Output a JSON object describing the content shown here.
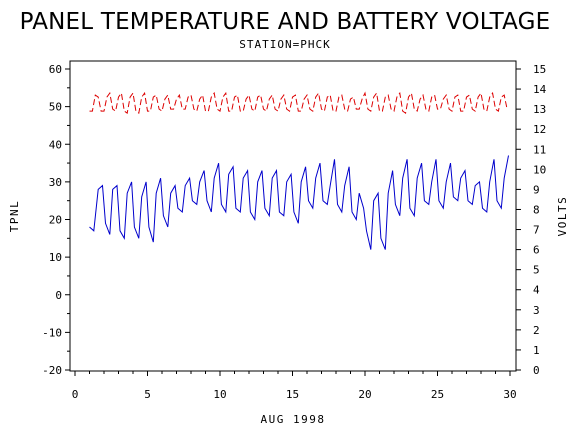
{
  "chart_data": {
    "type": "line",
    "title": "PANEL TEMPERATURE AND BATTERY VOLTAGE",
    "subtitle": "STATION=PHCK",
    "xlabel": "AUG 1998",
    "ylabel_left": "TPNL",
    "ylabel_right": "VOLTS",
    "xlim": [
      0,
      30
    ],
    "ylim_left": [
      -20,
      60
    ],
    "ylim_right": [
      0,
      15
    ],
    "x_ticks": [
      0,
      5,
      10,
      15,
      20,
      25,
      30
    ],
    "y_ticks_left": [
      -20,
      -10,
      0,
      10,
      20,
      30,
      40,
      50,
      60
    ],
    "y_ticks_right": [
      0,
      1,
      2,
      3,
      4,
      5,
      6,
      7,
      8,
      9,
      10,
      11,
      12,
      13,
      14,
      15
    ],
    "grid": false,
    "series": [
      {
        "axis": "left",
        "color": "#0000cc",
        "style": "solid",
        "x": [
          1.0,
          1.3,
          1.6,
          1.9,
          2.1,
          2.4,
          2.6,
          2.9,
          3.1,
          3.4,
          3.6,
          3.9,
          4.1,
          4.4,
          4.6,
          4.9,
          5.1,
          5.4,
          5.6,
          5.9,
          6.1,
          6.4,
          6.6,
          6.9,
          7.1,
          7.4,
          7.6,
          7.9,
          8.1,
          8.4,
          8.6,
          8.9,
          9.1,
          9.4,
          9.6,
          9.9,
          10.1,
          10.4,
          10.6,
          10.9,
          11.1,
          11.4,
          11.6,
          11.9,
          12.1,
          12.4,
          12.6,
          12.9,
          13.1,
          13.4,
          13.6,
          13.9,
          14.1,
          14.4,
          14.6,
          14.9,
          15.1,
          15.4,
          15.6,
          15.9,
          16.1,
          16.4,
          16.6,
          16.9,
          17.1,
          17.4,
          17.6,
          17.9,
          18.1,
          18.4,
          18.6,
          18.9,
          19.1,
          19.4,
          19.6,
          19.9,
          20.1,
          20.4,
          20.6,
          20.9,
          21.1,
          21.4,
          21.6,
          21.9,
          22.1,
          22.4,
          22.6,
          22.9,
          23.1,
          23.4,
          23.6,
          23.9,
          24.1,
          24.4,
          24.6,
          24.9,
          25.1,
          25.4,
          25.6,
          25.9,
          26.1,
          26.4,
          26.6,
          26.9,
          27.1,
          27.4,
          27.6,
          27.9,
          28.1,
          28.4,
          28.6,
          28.9,
          29.1,
          29.4,
          29.6,
          29.9
        ],
        "y": [
          18,
          17,
          28,
          29,
          19,
          16,
          28,
          29,
          17,
          15,
          27,
          30,
          18,
          15,
          26,
          30,
          18,
          14,
          27,
          31,
          21,
          18,
          27,
          29,
          23,
          22,
          29,
          31,
          25,
          24,
          30,
          33,
          25,
          22,
          31,
          35,
          24,
          22,
          32,
          34,
          23,
          22,
          31,
          33,
          22,
          20,
          30,
          33,
          23,
          21,
          31,
          33,
          22,
          21,
          30,
          32,
          22,
          19,
          30,
          34,
          25,
          23,
          31,
          35,
          25,
          24,
          29,
          36,
          24,
          22,
          29,
          34,
          22,
          20,
          27,
          23,
          17,
          12,
          25,
          27,
          15,
          12,
          27,
          33,
          24,
          21,
          31,
          36,
          23,
          21,
          31,
          35,
          25,
          24,
          30,
          36,
          25,
          23,
          30,
          35,
          26,
          25,
          31,
          33,
          25,
          24,
          29,
          30,
          23,
          22,
          30,
          36,
          25,
          23,
          31,
          37
        ]
      },
      {
        "axis": "right",
        "color": "#dd0000",
        "style": "dashed",
        "x": [
          1.0,
          1.2,
          1.4,
          1.6,
          1.8,
          2.0,
          2.2,
          2.4,
          2.6,
          2.8,
          3.0,
          3.2,
          3.4,
          3.6,
          3.8,
          4.0,
          4.2,
          4.4,
          4.6,
          4.8,
          5.0,
          5.2,
          5.4,
          5.6,
          5.8,
          6.0,
          6.2,
          6.4,
          6.6,
          6.8,
          7.0,
          7.2,
          7.4,
          7.6,
          7.8,
          8.0,
          8.2,
          8.4,
          8.6,
          8.8,
          9.0,
          9.2,
          9.4,
          9.6,
          9.8,
          10.0,
          10.2,
          10.4,
          10.6,
          10.8,
          11.0,
          11.2,
          11.4,
          11.6,
          11.8,
          12.0,
          12.2,
          12.4,
          12.6,
          12.8,
          13.0,
          13.2,
          13.4,
          13.6,
          13.8,
          14.0,
          14.2,
          14.4,
          14.6,
          14.8,
          15.0,
          15.2,
          15.4,
          15.6,
          15.8,
          16.0,
          16.2,
          16.4,
          16.6,
          16.8,
          17.0,
          17.2,
          17.4,
          17.6,
          17.8,
          18.0,
          18.2,
          18.4,
          18.6,
          18.8,
          19.0,
          19.2,
          19.4,
          19.6,
          19.8,
          20.0,
          20.2,
          20.4,
          20.6,
          20.8,
          21.0,
          21.2,
          21.4,
          21.6,
          21.8,
          22.0,
          22.2,
          22.4,
          22.6,
          22.8,
          23.0,
          23.2,
          23.4,
          23.6,
          23.8,
          24.0,
          24.2,
          24.4,
          24.6,
          24.8,
          25.0,
          25.2,
          25.4,
          25.6,
          25.8,
          26.0,
          26.2,
          26.4,
          26.6,
          26.8,
          27.0,
          27.2,
          27.4,
          27.6,
          27.8,
          28.0,
          28.2,
          28.4,
          28.6,
          28.8,
          29.0,
          29.2,
          29.4,
          29.6,
          29.8
        ],
        "y": [
          12.9,
          12.9,
          13.7,
          13.6,
          12.9,
          12.9,
          13.6,
          13.8,
          13.0,
          12.9,
          13.6,
          13.8,
          12.9,
          12.8,
          13.6,
          13.8,
          12.9,
          12.8,
          13.6,
          13.8,
          12.9,
          12.9,
          13.6,
          13.7,
          13.0,
          12.9,
          13.5,
          13.7,
          13.0,
          13.0,
          13.5,
          13.7,
          13.0,
          13.0,
          13.6,
          13.7,
          13.0,
          12.9,
          13.5,
          13.7,
          12.9,
          12.9,
          13.6,
          13.8,
          13.0,
          12.9,
          13.6,
          13.8,
          12.9,
          12.9,
          13.6,
          13.7,
          12.9,
          12.9,
          13.5,
          13.7,
          13.0,
          12.9,
          13.6,
          13.7,
          13.0,
          12.9,
          13.5,
          13.7,
          13.0,
          12.9,
          13.5,
          13.7,
          13.0,
          12.9,
          13.6,
          13.7,
          12.9,
          12.9,
          13.5,
          13.7,
          13.0,
          12.9,
          13.6,
          13.8,
          13.0,
          12.9,
          13.6,
          13.7,
          12.9,
          12.9,
          13.6,
          13.7,
          13.0,
          12.9,
          13.5,
          13.6,
          13.0,
          13.0,
          13.5,
          13.8,
          13.0,
          12.9,
          13.6,
          13.8,
          12.9,
          12.9,
          13.6,
          13.7,
          13.0,
          12.9,
          13.6,
          13.8,
          12.9,
          12.8,
          13.6,
          13.8,
          13.0,
          12.9,
          13.5,
          13.7,
          13.0,
          12.9,
          13.6,
          13.7,
          13.0,
          13.0,
          13.5,
          13.7,
          13.0,
          12.9,
          13.6,
          13.7,
          12.9,
          12.9,
          13.6,
          13.7,
          13.0,
          12.9,
          13.6,
          13.8,
          13.0,
          12.9,
          13.6,
          13.8,
          13.0,
          12.9,
          13.6,
          13.7,
          13.0
        ]
      }
    ]
  }
}
